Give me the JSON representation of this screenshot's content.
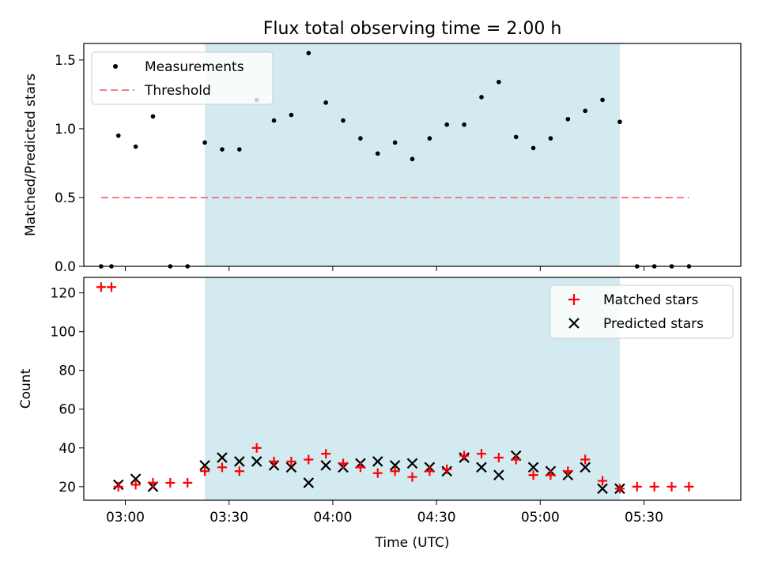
{
  "chart_data": [
    {
      "type": "scatter",
      "title": "Flux total observing time = 2.00 h",
      "xlabel": "",
      "ylabel": "Matched/Predicted stars",
      "xlim": [
        "02:48",
        "05:58"
      ],
      "ylim": [
        0,
        1.62
      ],
      "yticks": [
        0.0,
        0.5,
        1.0,
        1.5
      ],
      "ytick_labels": [
        "0.0",
        "0.5",
        "1.0",
        "1.5"
      ],
      "highlight_span": [
        "03:23",
        "05:23"
      ],
      "highlight_color": "#d3eaf0",
      "legend_placement": "upper left",
      "legend": [
        {
          "label": "Measurements",
          "marker": "dot",
          "color": "#000000"
        },
        {
          "label": "Threshold",
          "marker": "dashed-line",
          "color": "#f08080"
        }
      ],
      "threshold": {
        "value": 0.5,
        "x_start": "02:53",
        "x_end": "05:43"
      },
      "measurements": {
        "x": [
          "02:53",
          "02:56",
          "02:58",
          "03:03",
          "03:08",
          "03:13",
          "03:18",
          "03:23",
          "03:28",
          "03:33",
          "03:38",
          "03:43",
          "03:48",
          "03:53",
          "03:58",
          "04:03",
          "04:08",
          "04:13",
          "04:18",
          "04:23",
          "04:28",
          "04:33",
          "04:38",
          "04:43",
          "04:48",
          "04:53",
          "04:58",
          "05:03",
          "05:08",
          "05:13",
          "05:18",
          "05:23",
          "05:28",
          "05:33",
          "05:38",
          "05:43"
        ],
        "y": [
          0.0,
          0.0,
          0.95,
          0.87,
          1.09,
          0.0,
          0.0,
          0.9,
          0.85,
          0.85,
          1.21,
          1.06,
          1.1,
          1.55,
          1.19,
          1.06,
          0.93,
          0.82,
          0.9,
          0.78,
          0.93,
          1.03,
          1.03,
          1.23,
          1.34,
          0.94,
          0.86,
          0.93,
          1.07,
          1.13,
          1.21,
          1.05,
          0.0,
          0.0,
          0.0,
          0.0
        ]
      }
    },
    {
      "type": "scatter",
      "title": "",
      "xlabel": "Time (UTC)",
      "ylabel": "Count",
      "xlim": [
        "02:48",
        "05:58"
      ],
      "ylim": [
        13,
        128
      ],
      "yticks": [
        20,
        40,
        60,
        80,
        100,
        120
      ],
      "ytick_labels": [
        "20",
        "40",
        "60",
        "80",
        "100",
        "120"
      ],
      "xticks": [
        "03:00",
        "03:30",
        "04:00",
        "04:30",
        "05:00",
        "05:30"
      ],
      "xtick_labels": [
        "03:00",
        "03:30",
        "04:00",
        "04:30",
        "05:00",
        "05:30"
      ],
      "highlight_span": [
        "03:23",
        "05:23"
      ],
      "highlight_color": "#d3eaf0",
      "legend_placement": "upper right",
      "series": [
        {
          "name": "Matched stars",
          "marker": "plus",
          "color": "#ff0000",
          "x": [
            "02:53",
            "02:56",
            "02:58",
            "03:03",
            "03:08",
            "03:13",
            "03:18",
            "03:23",
            "03:28",
            "03:33",
            "03:38",
            "03:43",
            "03:48",
            "03:53",
            "03:58",
            "04:03",
            "04:08",
            "04:13",
            "04:18",
            "04:23",
            "04:28",
            "04:33",
            "04:38",
            "04:43",
            "04:48",
            "04:53",
            "04:58",
            "05:03",
            "05:08",
            "05:13",
            "05:18",
            "05:23",
            "05:28",
            "05:33",
            "05:38",
            "05:43"
          ],
          "y": [
            123,
            123,
            20,
            21,
            22,
            22,
            22,
            28,
            30,
            28,
            40,
            33,
            33,
            34,
            37,
            32,
            30,
            27,
            28,
            25,
            28,
            29,
            36,
            37,
            35,
            34,
            26,
            26,
            28,
            34,
            23,
            19,
            20,
            20,
            20,
            20
          ]
        },
        {
          "name": "Predicted stars",
          "marker": "x",
          "color": "#000000",
          "x": [
            "02:58",
            "03:03",
            "03:08",
            "03:23",
            "03:28",
            "03:33",
            "03:38",
            "03:43",
            "03:48",
            "03:53",
            "03:58",
            "04:03",
            "04:08",
            "04:13",
            "04:18",
            "04:23",
            "04:28",
            "04:33",
            "04:38",
            "04:43",
            "04:48",
            "04:53",
            "04:58",
            "05:03",
            "05:08",
            "05:13",
            "05:18",
            "05:23"
          ],
          "y": [
            21,
            24,
            20,
            31,
            35,
            33,
            33,
            31,
            30,
            22,
            31,
            30,
            32,
            33,
            31,
            32,
            30,
            28,
            35,
            30,
            26,
            36,
            30,
            28,
            26,
            30,
            19,
            19
          ]
        }
      ]
    }
  ]
}
